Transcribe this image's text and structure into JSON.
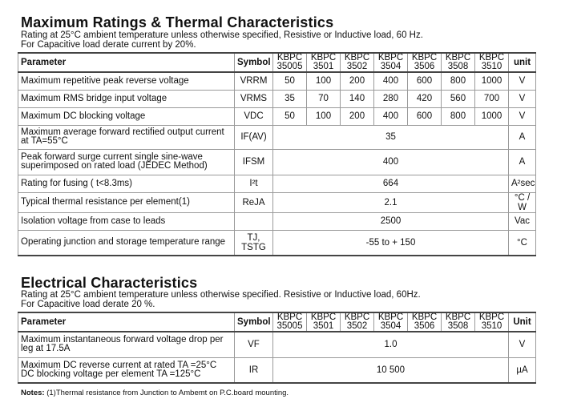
{
  "sec1": {
    "title": "Maximum Ratings & Thermal Characteristics",
    "sub1": "Rating at 25°C ambient temperature unless otherwise specified, Resistive or Inductive load, 60 Hz.",
    "sub2": "For Capacitive load derate current by 20%.",
    "headers": {
      "param": "Parameter",
      "symbol": "Symbol",
      "models": [
        [
          "KBPC",
          "35005"
        ],
        [
          "KBPC",
          "3501"
        ],
        [
          "KBPC",
          "3502"
        ],
        [
          "KBPC",
          "3504"
        ],
        [
          "KBPC",
          "3506"
        ],
        [
          "KBPC",
          "3508"
        ],
        [
          "KBPC",
          "3510"
        ]
      ],
      "unit": "unit"
    },
    "rows": [
      {
        "param": "Maximum repetitive peak reverse voltage",
        "symbol": "VRRM",
        "values": [
          "50",
          "100",
          "200",
          "400",
          "600",
          "800",
          "1000"
        ],
        "unit": "V"
      },
      {
        "param": "Maximum RMS bridge input voltage",
        "symbol": "VRMS",
        "values": [
          "35",
          "70",
          "140",
          "280",
          "420",
          "560",
          "700"
        ],
        "unit": "V"
      },
      {
        "param": "Maximum DC blocking voltage",
        "symbol": "VDC",
        "values": [
          "50",
          "100",
          "200",
          "400",
          "600",
          "800",
          "1000"
        ],
        "unit": "V"
      },
      {
        "param": "Maximum average forward rectified output current at TA=55°C",
        "symbol": "IF(AV)",
        "span": "35",
        "unit": "A"
      },
      {
        "param": "Peak forward surge current single sine-wave superimposed on rated load (JEDEC Method)",
        "symbol": "IFSM",
        "span": "400",
        "unit": "A"
      },
      {
        "param": "Rating for fusing ( t<8.3ms)",
        "symbol": "I²t",
        "span": "664",
        "unit": "A²sec"
      },
      {
        "param": "Typical  thermal resistance per element(1)",
        "symbol": "ReJA",
        "span": "2.1",
        "unit": "°C / W"
      },
      {
        "param": "Isolation voltage from case to leads",
        "symbol": "",
        "span": "2500",
        "unit": "Vac"
      },
      {
        "param": "Operating junction and storage temperature range",
        "symbol": "TJ, TSTG",
        "span": "-55 to + 150",
        "unit": "°C"
      }
    ]
  },
  "sec2": {
    "title": "Electrical Characteristics",
    "sub1": "Rating at 25°C ambient temperature unless otherwise specified. Resistive or Inductive load, 60Hz.",
    "sub2": "For Capacitive load derate 20 %.",
    "headers": {
      "param": "Parameter",
      "symbol": "Symbol",
      "models": [
        [
          "KBPC",
          "35005"
        ],
        [
          "KBPC",
          "3501"
        ],
        [
          "KBPC",
          "3502"
        ],
        [
          "KBPC",
          "3504"
        ],
        [
          "KBPC",
          "3506"
        ],
        [
          "KBPC",
          "3508"
        ],
        [
          "KBPC",
          "3510"
        ]
      ],
      "unit": "Unit"
    },
    "rows": [
      {
        "param": "Maximum instantaneous forward voltage drop per leg at 17.5A",
        "symbol": "VF",
        "span": "1.0",
        "unit": "V"
      },
      {
        "param": "Maximum DC reverse current at rated  TA =25°C DC blocking voltage per element      TA =125°C",
        "symbol": "IR",
        "span": "10 500",
        "unit": "µA"
      }
    ]
  },
  "notes": {
    "label": "Notes:",
    "text": "(1)Thermal resistance from Junction to Ambemt on P.C.board mounting."
  }
}
